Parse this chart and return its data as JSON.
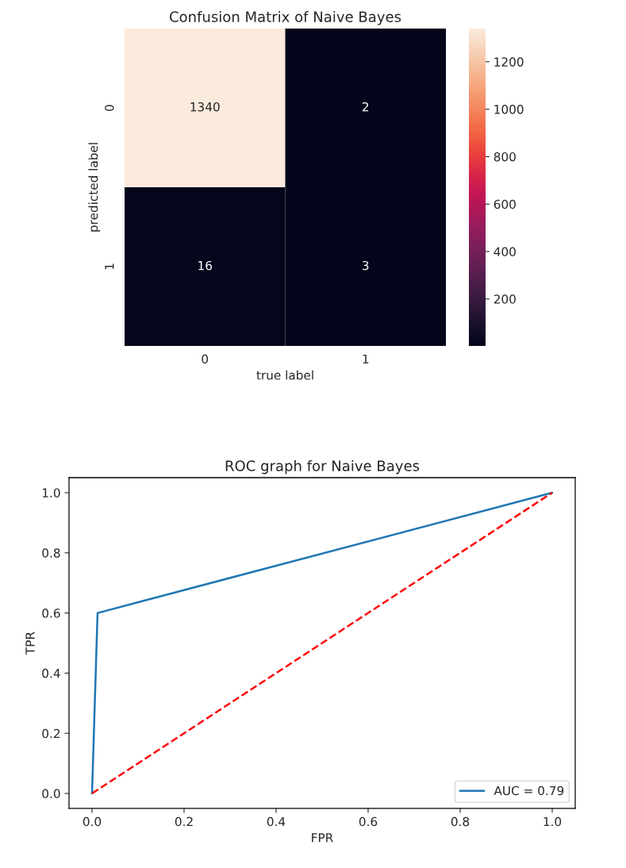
{
  "chart_data": [
    {
      "type": "heatmap",
      "title": "Confusion Matrix of Naive Bayes",
      "xlabel": "true label",
      "ylabel": "predicted label",
      "categories": [
        "0",
        "1"
      ],
      "y_categories": [
        "0",
        "1"
      ],
      "cells": [
        [
          1340,
          2
        ],
        [
          16,
          3
        ]
      ],
      "data_labels": true,
      "clim": [
        2,
        1340
      ],
      "cticks": [
        200,
        400,
        600,
        800,
        1000,
        1200
      ]
    },
    {
      "type": "line",
      "title": "ROC graph for Naive Bayes",
      "xlabel": "FPR",
      "ylabel": "TPR",
      "series": [
        {
          "name": "AUC = 0.79",
          "color": "#1f77b4",
          "x": [
            0,
            0.012,
            1
          ],
          "values": [
            0,
            0.6,
            1
          ],
          "line_style": "solid"
        },
        {
          "color": "#ff0000",
          "x": [
            0,
            1
          ],
          "values": [
            0,
            1
          ],
          "line_style": "dashed"
        }
      ],
      "xlim": [
        -0.05,
        1.05
      ],
      "ylim": [
        -0.05,
        1.05
      ],
      "xticks": [
        {
          "value": 0,
          "label": "0.0"
        },
        0.2,
        0.4,
        0.6,
        0.8,
        {
          "value": 1,
          "label": "1.0"
        }
      ],
      "yticks": [
        {
          "value": 0,
          "label": "0.0"
        },
        0.2,
        0.4,
        0.6,
        0.8,
        {
          "value": 1,
          "label": "1.0"
        }
      ],
      "grid": false,
      "legend": "bottom right"
    }
  ]
}
